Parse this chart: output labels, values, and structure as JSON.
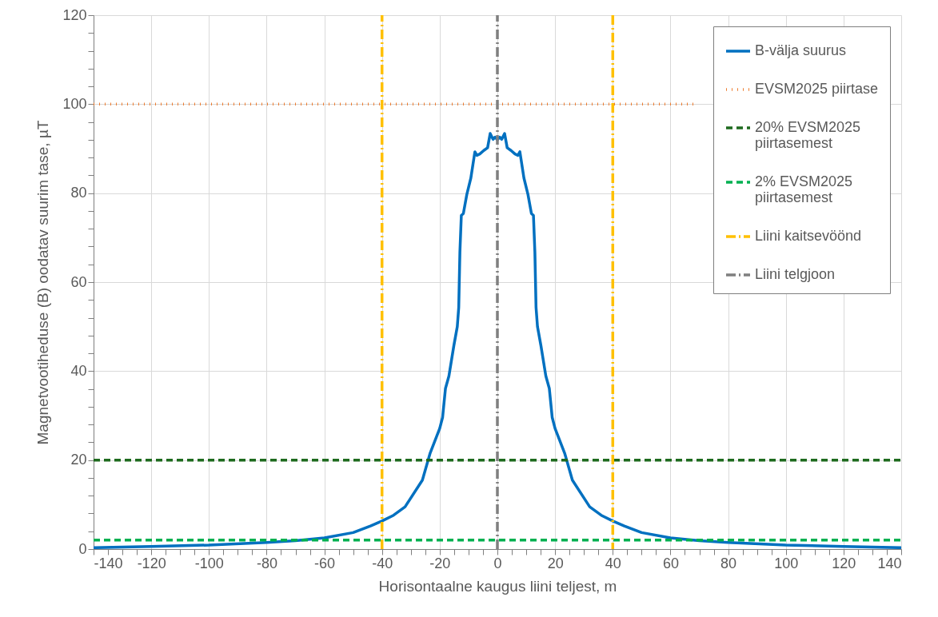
{
  "chart_data": {
    "type": "line",
    "xlabel": "Horisontaalne kaugus liini teljest, m",
    "ylabel": "Magnetvootiheduse (B) oodatav suurim tase, µT",
    "xlim": [
      -140,
      140
    ],
    "ylim": [
      0,
      120
    ],
    "xticks": [
      -140,
      {
        "value": -135,
        "label": null
      },
      {
        "value": -130,
        "label": null
      },
      {
        "value": -125,
        "label": null
      },
      -120,
      {
        "value": -115,
        "label": null
      },
      {
        "value": -110,
        "label": null
      },
      {
        "value": -105,
        "label": null
      },
      -100,
      {
        "value": -95,
        "label": null
      },
      {
        "value": -90,
        "label": null
      },
      {
        "value": -85,
        "label": null
      },
      -80,
      {
        "value": -75,
        "label": null
      },
      {
        "value": -70,
        "label": null
      },
      {
        "value": -65,
        "label": null
      },
      -60,
      {
        "value": -55,
        "label": null
      },
      {
        "value": -50,
        "label": null
      },
      {
        "value": -45,
        "label": null
      },
      -40,
      {
        "value": -35,
        "label": null
      },
      {
        "value": -30,
        "label": null
      },
      {
        "value": -25,
        "label": null
      },
      -20,
      {
        "value": -15,
        "label": null
      },
      {
        "value": -10,
        "label": null
      },
      {
        "value": -5,
        "label": null
      },
      0,
      {
        "value": 5,
        "label": null
      },
      {
        "value": 10,
        "label": null
      },
      {
        "value": 15,
        "label": null
      },
      20,
      {
        "value": 25,
        "label": null
      },
      {
        "value": 30,
        "label": null
      },
      {
        "value": 35,
        "label": null
      },
      40,
      {
        "value": 45,
        "label": null
      },
      {
        "value": 50,
        "label": null
      },
      {
        "value": 55,
        "label": null
      },
      60,
      {
        "value": 65,
        "label": null
      },
      {
        "value": 70,
        "label": null
      },
      {
        "value": 75,
        "label": null
      },
      80,
      {
        "value": 85,
        "label": null
      },
      {
        "value": 90,
        "label": null
      },
      {
        "value": 95,
        "label": null
      },
      100,
      {
        "value": 105,
        "label": null
      },
      {
        "value": 110,
        "label": null
      },
      {
        "value": 115,
        "label": null
      },
      120,
      {
        "value": 125,
        "label": null
      },
      {
        "value": 130,
        "label": null
      },
      {
        "value": 135,
        "label": null
      },
      140
    ],
    "yticks": [
      0,
      {
        "value": 4,
        "label": null
      },
      {
        "value": 8,
        "label": null
      },
      {
        "value": 12,
        "label": null
      },
      {
        "value": 16,
        "label": null
      },
      20,
      {
        "value": 24,
        "label": null
      },
      {
        "value": 28,
        "label": null
      },
      {
        "value": 32,
        "label": null
      },
      {
        "value": 36,
        "label": null
      },
      40,
      {
        "value": 44,
        "label": null
      },
      {
        "value": 48,
        "label": null
      },
      {
        "value": 52,
        "label": null
      },
      {
        "value": 56,
        "label": null
      },
      60,
      {
        "value": 64,
        "label": null
      },
      {
        "value": 68,
        "label": null
      },
      {
        "value": 72,
        "label": null
      },
      {
        "value": 76,
        "label": null
      },
      80,
      {
        "value": 84,
        "label": null
      },
      {
        "value": 88,
        "label": null
      },
      {
        "value": 92,
        "label": null
      },
      {
        "value": 96,
        "label": null
      },
      100,
      {
        "value": 104,
        "label": null
      },
      {
        "value": 108,
        "label": null
      },
      {
        "value": 112,
        "label": null
      },
      {
        "value": 116,
        "label": null
      },
      120
    ],
    "grid": true,
    "legend": "top right",
    "series": [
      {
        "name": "B-välja suurus",
        "color": "#0070c0",
        "line_style": "solid",
        "x": [
          -140,
          -120,
          -100,
          -80,
          -70,
          -60,
          -50,
          -44,
          -40,
          -36,
          -32,
          -26,
          -23.3,
          -20,
          -19,
          -18,
          -16.8,
          -15.1,
          -13.9,
          -13.4,
          -13,
          -12.5,
          -11.8,
          -10.6,
          -9.2,
          -7.8,
          -7.1,
          -6.1,
          -4.7,
          -3.4,
          -2.5,
          -1.5,
          -0.8,
          0,
          0.8,
          1.5,
          2.5,
          3.4,
          4.7,
          6.1,
          7.1,
          7.8,
          9.2,
          10.6,
          11.8,
          12.5,
          13,
          13.4,
          13.9,
          15.1,
          16.8,
          18,
          19,
          20,
          23.3,
          26,
          32,
          36,
          40,
          44,
          50,
          60,
          70,
          80,
          100,
          120,
          140
        ],
        "values": [
          0.3,
          0.6,
          0.9,
          1.5,
          1.9,
          2.5,
          3.7,
          5.2,
          6.3,
          7.6,
          9.5,
          15.5,
          21.6,
          27.1,
          29.6,
          36.1,
          38.9,
          45.7,
          50,
          54.3,
          66.7,
          75,
          75.4,
          79.7,
          83.4,
          89.3,
          88.5,
          88.8,
          89.6,
          90.2,
          93.4,
          92.1,
          92.6,
          92,
          92.6,
          92.1,
          93.4,
          90.2,
          89.6,
          88.8,
          88.5,
          89.3,
          83.4,
          79.7,
          75.4,
          75,
          66.7,
          54.3,
          50,
          45.7,
          38.9,
          36.1,
          29.6,
          27.1,
          21.6,
          15.5,
          9.5,
          7.6,
          6.3,
          5.2,
          3.7,
          2.5,
          1.9,
          1.5,
          0.9,
          0.6,
          0.3
        ]
      },
      {
        "name": "EVSM2025 piirtase",
        "color": "#ed7d31",
        "line_style": "dotted",
        "x": [
          -140,
          68
        ],
        "values": [
          100,
          100
        ]
      },
      {
        "name": "20% EVSM2025 piirtasemest",
        "color": "#1e6a1e",
        "line_style": "dashed",
        "x": [
          -140,
          140
        ],
        "values": [
          20,
          20
        ]
      },
      {
        "name": "2% EVSM2025 piirtasemest",
        "color": "#00b050",
        "line_style": "dashed",
        "x": [
          -140,
          140
        ],
        "values": [
          2,
          2
        ]
      },
      {
        "name": "Liini kaitsevöönd",
        "color": "#ffc000",
        "line_style": "dashdot",
        "x": [
          -40,
          -40
        ],
        "values": [
          0,
          120
        ]
      },
      {
        "color": "#ffc000",
        "line_style": "dashdot",
        "x": [
          40,
          40
        ],
        "values": [
          120,
          0
        ]
      },
      {
        "name": "Liini telgjoon",
        "color": "#7f7f7f",
        "line_style": "dashdot",
        "x": [
          0,
          0
        ],
        "values": [
          0,
          120
        ]
      }
    ]
  }
}
